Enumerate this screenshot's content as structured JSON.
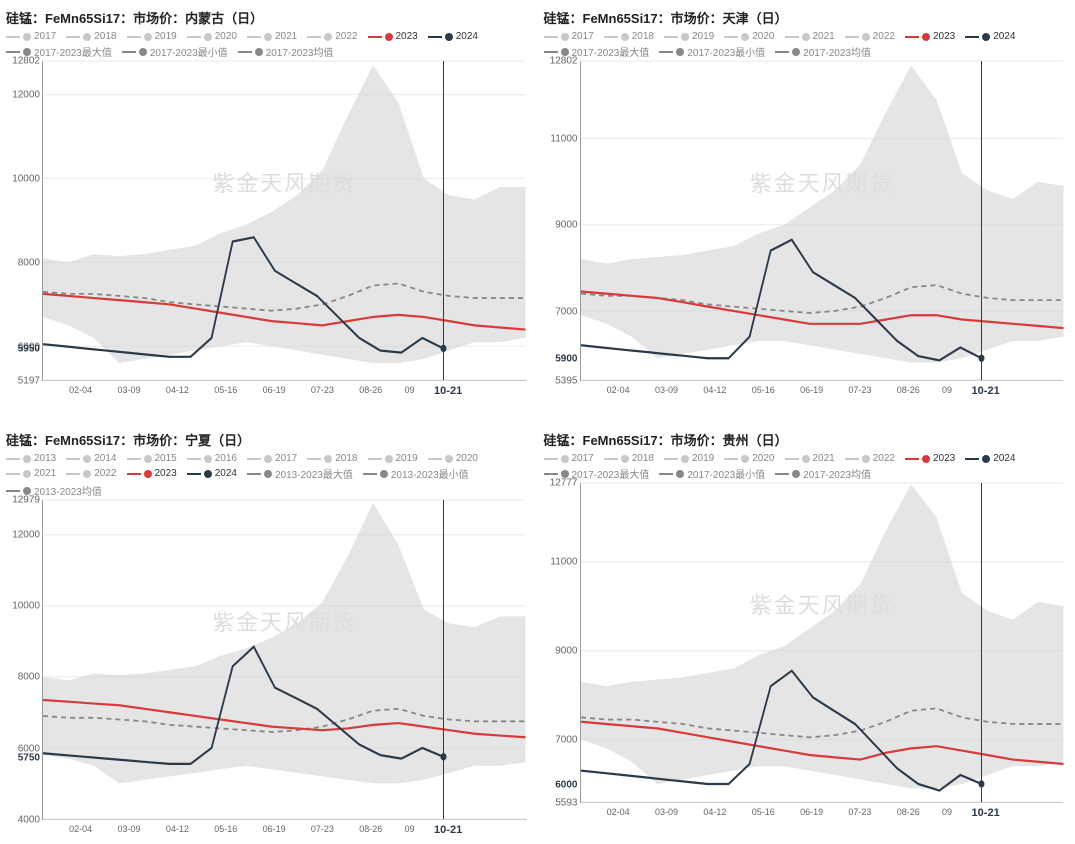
{
  "watermark": "紫金天风期货",
  "x_ticks": [
    {
      "pos": 0.08,
      "label": "02-04"
    },
    {
      "pos": 0.18,
      "label": "03-09"
    },
    {
      "pos": 0.28,
      "label": "04-12"
    },
    {
      "pos": 0.38,
      "label": "05-16"
    },
    {
      "pos": 0.48,
      "label": "06-19"
    },
    {
      "pos": 0.58,
      "label": "07-23"
    },
    {
      "pos": 0.68,
      "label": "08-26"
    },
    {
      "pos": 0.76,
      "label": "09"
    },
    {
      "pos": 0.84,
      "label": "10-21",
      "special": true
    }
  ],
  "legend_a": {
    "gray_years": [
      "2017",
      "2018",
      "2019",
      "2020",
      "2021",
      "2022"
    ],
    "s2023": "2023",
    "s2024": "2024",
    "max": "2017-2023最大值",
    "min": "2017-2023最小值",
    "mean": "2017-2023均值"
  },
  "legend_b": {
    "gray_years": [
      "2013",
      "2014",
      "2015",
      "2016",
      "2017",
      "2018",
      "2019",
      "2020",
      "2021",
      "2022"
    ],
    "s2023": "2023",
    "s2024": "2024",
    "max": "2013-2023最大值",
    "min": "2013-2023最小值",
    "mean": "2013-2023均值"
  },
  "colors": {
    "gray_dot": "#c8c8c8",
    "red": "#d83a3a",
    "navy": "#2b3a4a",
    "band": "#cccccc",
    "mean": "#888888",
    "grid": "#eeeeee",
    "axis": "#999999",
    "text": "#666666"
  },
  "panels": [
    {
      "title": "硅锰：FeMn65Si17：市场价：内蒙古（日）",
      "legend": "a",
      "ylim": [
        5197,
        12802
      ],
      "yticks": [
        5197,
        6000,
        8000,
        10000,
        12000,
        12802
      ],
      "current_label": 5950,
      "band_max": [
        8100,
        8000,
        8200,
        8150,
        8200,
        8300,
        8400,
        8700,
        8900,
        9200,
        9600,
        10200,
        11500,
        12700,
        11800,
        10000,
        9600,
        9500,
        9800,
        9800
      ],
      "band_min": [
        6700,
        6500,
        6200,
        5600,
        5700,
        5800,
        5900,
        6000,
        6100,
        6000,
        5900,
        5800,
        5700,
        5600,
        5600,
        5700,
        5900,
        6100,
        6100,
        6200
      ],
      "mean": [
        7300,
        7250,
        7250,
        7200,
        7150,
        7050,
        7000,
        6950,
        6900,
        6850,
        6900,
        7000,
        7200,
        7450,
        7500,
        7300,
        7200,
        7150,
        7150,
        7150
      ],
      "s2023": [
        7250,
        7200,
        7150,
        7100,
        7050,
        7000,
        6900,
        6800,
        6700,
        6600,
        6550,
        6500,
        6600,
        6700,
        6750,
        6700,
        6600,
        6500,
        6450,
        6400
      ],
      "s2024": [
        6050,
        6000,
        5950,
        5900,
        5850,
        5800,
        5750,
        5750,
        6200,
        8500,
        8600,
        7800,
        7500,
        7200,
        6700,
        6200,
        5900,
        5850,
        6200,
        5950
      ],
      "line_end_x": 0.83
    },
    {
      "title": "硅锰：FeMn65Si17：市场价：天津（日）",
      "legend": "a",
      "ylim": [
        5395,
        12802
      ],
      "yticks": [
        5395,
        7000,
        9000,
        11000,
        12802
      ],
      "current_label": 5900,
      "band_max": [
        8200,
        8100,
        8200,
        8250,
        8300,
        8400,
        8500,
        8800,
        9000,
        9400,
        9800,
        10400,
        11600,
        12700,
        11900,
        10200,
        9800,
        9600,
        10000,
        9900
      ],
      "band_min": [
        6900,
        6700,
        6400,
        5900,
        6000,
        6100,
        6200,
        6300,
        6300,
        6200,
        6100,
        6000,
        5900,
        5800,
        5800,
        5900,
        6100,
        6300,
        6300,
        6400
      ],
      "mean": [
        7400,
        7350,
        7350,
        7300,
        7250,
        7150,
        7100,
        7050,
        7000,
        6950,
        7000,
        7100,
        7300,
        7550,
        7600,
        7400,
        7300,
        7250,
        7250,
        7250
      ],
      "s2023": [
        7450,
        7400,
        7350,
        7300,
        7200,
        7100,
        7000,
        6900,
        6800,
        6700,
        6700,
        6700,
        6800,
        6900,
        6900,
        6800,
        6750,
        6700,
        6650,
        6600
      ],
      "s2024": [
        6200,
        6150,
        6100,
        6050,
        6000,
        5950,
        5900,
        5900,
        6400,
        8400,
        8650,
        7900,
        7600,
        7300,
        6800,
        6300,
        5950,
        5850,
        6150,
        5900
      ],
      "line_end_x": 0.83
    },
    {
      "title": "硅锰：FeMn65Si17：市场价：宁夏（日）",
      "legend": "b",
      "ylim": [
        4000,
        12979
      ],
      "yticks": [
        4000,
        6000,
        8000,
        10000,
        12000,
        12979
      ],
      "current_label": 5750,
      "band_max": [
        8000,
        7900,
        8100,
        8050,
        8100,
        8200,
        8300,
        8600,
        8800,
        9100,
        9500,
        10100,
        11400,
        12900,
        11700,
        9900,
        9500,
        9400,
        9700,
        9700
      ],
      "band_min": [
        5800,
        5700,
        5500,
        5000,
        5100,
        5200,
        5300,
        5400,
        5500,
        5400,
        5300,
        5200,
        5100,
        5000,
        5000,
        5100,
        5300,
        5500,
        5500,
        5600
      ],
      "mean": [
        6900,
        6850,
        6850,
        6800,
        6750,
        6650,
        6600,
        6550,
        6500,
        6450,
        6500,
        6600,
        6800,
        7050,
        7100,
        6900,
        6800,
        6750,
        6750,
        6750
      ],
      "s2023": [
        7350,
        7300,
        7250,
        7200,
        7100,
        7000,
        6900,
        6800,
        6700,
        6600,
        6550,
        6500,
        6550,
        6650,
        6700,
        6600,
        6500,
        6400,
        6350,
        6300
      ],
      "s2024": [
        5850,
        5800,
        5750,
        5700,
        5650,
        5600,
        5550,
        5550,
        6000,
        8300,
        8850,
        7700,
        7400,
        7100,
        6600,
        6100,
        5800,
        5700,
        6000,
        5750
      ],
      "line_end_x": 0.83
    },
    {
      "title": "硅锰：FeMn65Si17：市场价：贵州（日）",
      "legend": "a",
      "ylim": [
        5593,
        12777
      ],
      "yticks": [
        5593,
        7000,
        9000,
        11000,
        12777
      ],
      "current_label": 6000,
      "band_max": [
        8300,
        8200,
        8300,
        8350,
        8400,
        8500,
        8600,
        8900,
        9100,
        9500,
        9900,
        10500,
        11700,
        12750,
        12000,
        10300,
        9900,
        9700,
        10100,
        10000
      ],
      "band_min": [
        7000,
        6800,
        6500,
        6000,
        6100,
        6200,
        6300,
        6400,
        6400,
        6300,
        6200,
        6100,
        6000,
        5900,
        5900,
        6000,
        6200,
        6400,
        6400,
        6500
      ],
      "mean": [
        7500,
        7450,
        7450,
        7400,
        7350,
        7250,
        7200,
        7150,
        7100,
        7050,
        7100,
        7200,
        7400,
        7650,
        7700,
        7500,
        7400,
        7350,
        7350,
        7350
      ],
      "s2023": [
        7400,
        7350,
        7300,
        7250,
        7150,
        7050,
        6950,
        6850,
        6750,
        6650,
        6600,
        6550,
        6700,
        6800,
        6850,
        6750,
        6650,
        6550,
        6500,
        6450
      ],
      "s2024": [
        6300,
        6250,
        6200,
        6150,
        6100,
        6050,
        6000,
        6000,
        6450,
        8200,
        8550,
        7950,
        7650,
        7350,
        6850,
        6350,
        6000,
        5850,
        6200,
        6000
      ],
      "line_end_x": 0.83
    }
  ]
}
